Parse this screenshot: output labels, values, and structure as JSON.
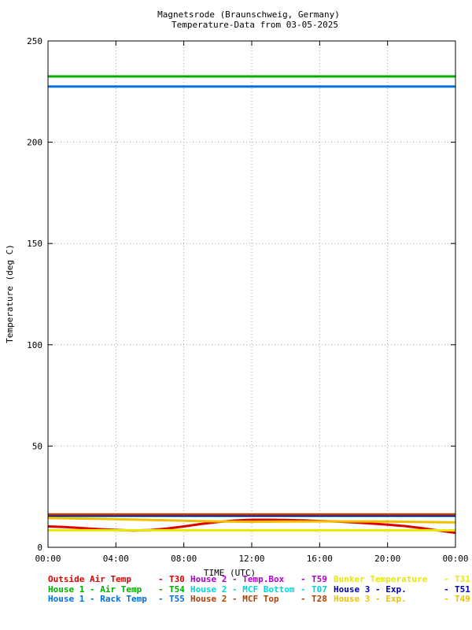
{
  "chart_data": {
    "type": "line",
    "title": "Magnetsrode (Braunschweig, Germany)",
    "subtitle": "Temperature-Data from 03-05-2025",
    "xlabel": "TIME (UTC)",
    "ylabel": "Temperature (deg C)",
    "xlim": [
      0,
      24
    ],
    "ylim": [
      0,
      250
    ],
    "grid": true,
    "x_ticks": [
      {
        "value": 0,
        "label": "00:00"
      },
      {
        "value": 4,
        "label": "04:00"
      },
      {
        "value": 8,
        "label": "08:00"
      },
      {
        "value": 12,
        "label": "12:00"
      },
      {
        "value": 16,
        "label": "16:00"
      },
      {
        "value": 20,
        "label": "20:00"
      },
      {
        "value": 24,
        "label": "00:00"
      }
    ],
    "y_ticks": [
      0,
      50,
      100,
      150,
      200,
      250
    ],
    "legend_position": "bottom",
    "series": [
      {
        "name": "Outside Air Temp",
        "code": "T30",
        "color": "#e00000",
        "x": [
          0,
          1,
          2,
          3,
          4,
          5,
          6,
          7,
          8,
          9,
          10,
          11,
          12,
          13,
          14,
          15,
          16,
          17,
          18,
          19,
          20,
          21,
          22,
          23,
          24
        ],
        "y": [
          10.3,
          10.0,
          9.5,
          9.0,
          8.6,
          8.3,
          8.5,
          9.2,
          10.3,
          11.5,
          12.5,
          13.2,
          13.6,
          13.6,
          13.5,
          13.3,
          13.0,
          12.7,
          12.3,
          11.8,
          11.2,
          10.5,
          9.5,
          8.3,
          7.1
        ]
      },
      {
        "name": "House 2 - Temp.Box",
        "code": "T59",
        "color": "#b000d0",
        "x": [
          0,
          24
        ],
        "y": [
          15.9,
          15.9
        ]
      },
      {
        "name": "Bunker Temperature",
        "code": "T31",
        "color": "#e8e800",
        "x": [
          0,
          24
        ],
        "y": [
          8.4,
          8.4
        ]
      },
      {
        "name": "House 1 - Air  Temp",
        "code": "T54",
        "color": "#00b000",
        "x": [
          0,
          24
        ],
        "y": [
          232.5,
          232.5
        ]
      },
      {
        "name": "House 2 - MCF Bottom",
        "code": "T07",
        "color": "#00d8d8",
        "x": [
          0,
          24
        ],
        "y": [
          15.5,
          15.5
        ]
      },
      {
        "name": "House 3 - Exp.",
        "code": "T51",
        "color": "#0000b0",
        "x": [
          0,
          24
        ],
        "y": [
          15.7,
          15.7
        ]
      },
      {
        "name": "House 1 - Rack Temp",
        "code": "T55",
        "color": "#0070e0",
        "x": [
          0,
          24
        ],
        "y": [
          227.5,
          227.5
        ]
      },
      {
        "name": "House 2 - MCF Top",
        "code": "T28",
        "color": "#b04000",
        "x": [
          0,
          24
        ],
        "y": [
          16.2,
          16.2
        ]
      },
      {
        "name": "House 3 - Exp.",
        "code": "T49",
        "color": "#f0c000",
        "x": [
          0,
          2,
          4,
          6,
          8,
          10,
          12,
          14,
          16,
          18,
          20,
          22,
          24
        ],
        "y": [
          14.5,
          14.2,
          13.9,
          13.5,
          13.1,
          12.8,
          12.6,
          12.7,
          12.8,
          12.8,
          12.7,
          12.5,
          12.3
        ]
      }
    ]
  }
}
